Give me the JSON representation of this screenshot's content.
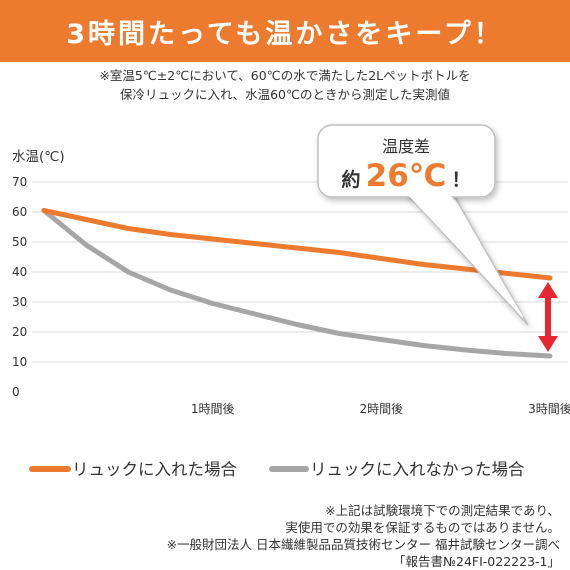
{
  "header": {
    "title": "3時間たっても温かさをキープ！"
  },
  "notes": {
    "line1": "※室温5℃±2℃において、60℃の水で満たした2Lペットボトルを",
    "line2": "保冷リュックに入れ、水温60℃のときから測定した実測値"
  },
  "callout": {
    "label": "温度差",
    "prefix": "約",
    "value": "26℃",
    "suffix": "！"
  },
  "footnotes": {
    "line1": "※上記は試験環境下での測定結果であり、",
    "line2": "実使用での効果を保証するものではありません。",
    "line3": "※一般財団法人 日本繊維製品品質技術センター 福井試験センター調べ",
    "line4": "「報告書№24FI-022223-1」"
  },
  "colors": {
    "accent": "#ec7b30",
    "gray_series": "#a6a6a6",
    "arrow": "#e8262f",
    "grid": "#d9d9d9"
  },
  "chart_data": {
    "type": "line",
    "ylabel": "水温(℃)",
    "ylim": [
      0,
      70
    ],
    "yticks": [
      "0",
      "10",
      "20",
      "30",
      "40",
      "50",
      "60",
      "70"
    ],
    "x_ticks": [
      "1時間後",
      "2時間後",
      "3時間後"
    ],
    "xlim": [
      0,
      3
    ],
    "grid": true,
    "legend_position": "bottom",
    "series": [
      {
        "name": "リュックに入れた場合",
        "color": "#ec7b30",
        "x": [
          0,
          0.25,
          0.5,
          0.75,
          1.0,
          1.25,
          1.5,
          1.75,
          2.0,
          2.25,
          2.5,
          2.75,
          3.0
        ],
        "y": [
          60.5,
          57.5,
          54.5,
          52.5,
          51,
          49.5,
          48,
          46.5,
          44.5,
          42.5,
          41,
          39.5,
          38
        ]
      },
      {
        "name": "リュックに入れなかった場合",
        "color": "#a6a6a6",
        "x": [
          0,
          0.25,
          0.5,
          0.75,
          1.0,
          1.25,
          1.5,
          1.75,
          2.0,
          2.25,
          2.5,
          2.75,
          3.0
        ],
        "y": [
          60.5,
          49,
          40,
          34,
          29.5,
          26,
          22.5,
          19.5,
          17.5,
          15.5,
          14,
          12.8,
          12
        ]
      }
    ]
  }
}
